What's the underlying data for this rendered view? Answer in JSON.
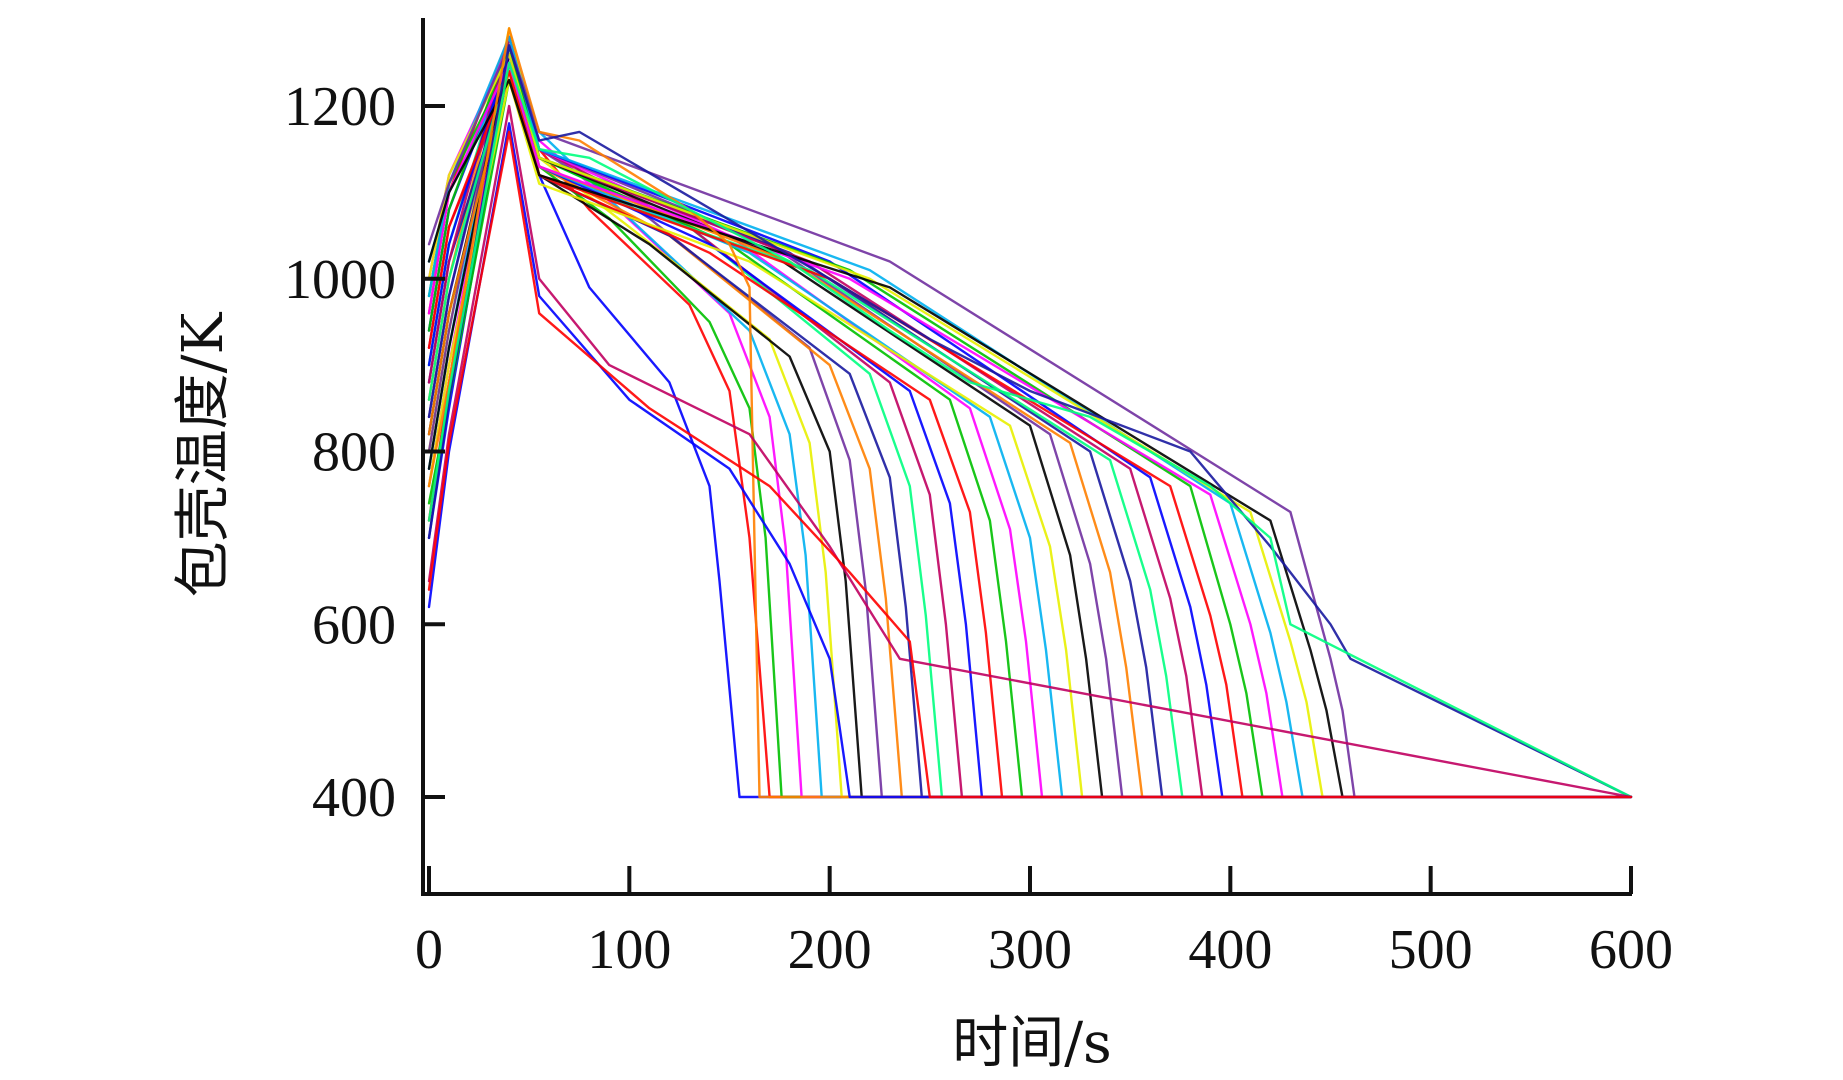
{
  "chart_data": {
    "type": "line",
    "title": "",
    "xlabel": "时间/s",
    "ylabel": "包壳温度/K",
    "xlim": [
      0,
      600
    ],
    "ylim": [
      300,
      1300
    ],
    "x_ticks": [
      0,
      100,
      200,
      300,
      400,
      500,
      600
    ],
    "y_ticks": [
      400,
      600,
      800,
      1000,
      1200
    ],
    "x_tick_labels": [
      "0",
      "100",
      "200",
      "300",
      "400",
      "500",
      "600"
    ],
    "y_tick_labels": [
      "400",
      "600",
      "800",
      "1000",
      "1200"
    ],
    "grid": false,
    "legend": "none",
    "palette": [
      "#0000ff",
      "#ff0000",
      "#00c000",
      "#ff00ff",
      "#00b0f0",
      "#e8f000",
      "#000000",
      "#7030a0",
      "#ff8000",
      "#1a1aa0",
      "#00ff80",
      "#c00060"
    ],
    "series": [
      {
        "x": [
          0,
          10,
          40,
          55,
          80,
          120,
          140,
          145,
          155,
          600
        ],
        "y": [
          700,
          850,
          1250,
          1120,
          990,
          880,
          760,
          650,
          400,
          400
        ]
      },
      {
        "x": [
          0,
          10,
          40,
          55,
          80,
          130,
          150,
          160,
          170,
          600
        ],
        "y": [
          720,
          880,
          1270,
          1150,
          1080,
          970,
          870,
          700,
          400,
          400
        ]
      },
      {
        "x": [
          0,
          10,
          40,
          55,
          90,
          140,
          160,
          168,
          176,
          600
        ],
        "y": [
          740,
          860,
          1230,
          1130,
          1070,
          950,
          850,
          700,
          400,
          400
        ]
      },
      {
        "x": [
          0,
          10,
          40,
          55,
          90,
          150,
          170,
          178,
          186,
          600
        ],
        "y": [
          760,
          900,
          1260,
          1160,
          1090,
          960,
          840,
          690,
          400,
          400
        ]
      },
      {
        "x": [
          0,
          10,
          40,
          55,
          100,
          160,
          180,
          188,
          196,
          600
        ],
        "y": [
          780,
          920,
          1280,
          1170,
          1070,
          940,
          820,
          680,
          400,
          400
        ]
      },
      {
        "x": [
          0,
          10,
          40,
          55,
          100,
          170,
          190,
          198,
          206,
          600
        ],
        "y": [
          800,
          940,
          1290,
          1140,
          1060,
          930,
          810,
          660,
          400,
          400
        ]
      },
      {
        "x": [
          0,
          10,
          40,
          55,
          110,
          180,
          200,
          208,
          216,
          600
        ],
        "y": [
          820,
          960,
          1250,
          1120,
          1040,
          910,
          800,
          650,
          400,
          400
        ]
      },
      {
        "x": [
          0,
          10,
          40,
          55,
          110,
          190,
          210,
          218,
          226,
          600
        ],
        "y": [
          840,
          980,
          1260,
          1150,
          1070,
          920,
          790,
          640,
          400,
          400
        ]
      },
      {
        "x": [
          0,
          10,
          40,
          55,
          120,
          200,
          220,
          228,
          236,
          600
        ],
        "y": [
          860,
          1000,
          1280,
          1130,
          1050,
          900,
          780,
          630,
          400,
          400
        ]
      },
      {
        "x": [
          0,
          10,
          40,
          55,
          120,
          210,
          230,
          238,
          246,
          600
        ],
        "y": [
          880,
          1020,
          1240,
          1120,
          1050,
          890,
          770,
          620,
          400,
          400
        ]
      },
      {
        "x": [
          0,
          10,
          40,
          55,
          130,
          220,
          240,
          248,
          256,
          600
        ],
        "y": [
          900,
          1040,
          1270,
          1140,
          1060,
          890,
          760,
          610,
          400,
          400
        ]
      },
      {
        "x": [
          0,
          10,
          40,
          55,
          130,
          230,
          250,
          258,
          266,
          600
        ],
        "y": [
          920,
          1060,
          1230,
          1150,
          1060,
          880,
          750,
          600,
          400,
          400
        ]
      },
      {
        "x": [
          0,
          10,
          40,
          55,
          140,
          240,
          260,
          268,
          276,
          600
        ],
        "y": [
          940,
          1080,
          1260,
          1130,
          1040,
          870,
          740,
          600,
          400,
          400
        ]
      },
      {
        "x": [
          0,
          10,
          40,
          55,
          140,
          250,
          270,
          278,
          286,
          600
        ],
        "y": [
          960,
          1100,
          1280,
          1120,
          1030,
          860,
          730,
          590,
          400,
          400
        ]
      },
      {
        "x": [
          0,
          10,
          40,
          55,
          150,
          260,
          280,
          288,
          296,
          600
        ],
        "y": [
          980,
          1110,
          1250,
          1140,
          1040,
          860,
          720,
          580,
          400,
          400
        ]
      },
      {
        "x": [
          0,
          10,
          40,
          55,
          150,
          270,
          290,
          298,
          306,
          600
        ],
        "y": [
          1000,
          1120,
          1270,
          1150,
          1050,
          850,
          710,
          580,
          400,
          400
        ]
      },
      {
        "x": [
          0,
          10,
          40,
          55,
          160,
          280,
          300,
          308,
          316,
          600
        ],
        "y": [
          1020,
          1100,
          1240,
          1130,
          1030,
          840,
          700,
          570,
          400,
          400
        ]
      },
      {
        "x": [
          0,
          10,
          40,
          55,
          160,
          290,
          310,
          318,
          326,
          600
        ],
        "y": [
          760,
          900,
          1230,
          1110,
          1020,
          830,
          690,
          570,
          400,
          400
        ]
      },
      {
        "x": [
          0,
          10,
          40,
          55,
          170,
          300,
          320,
          328,
          336,
          600
        ],
        "y": [
          780,
          920,
          1260,
          1140,
          1030,
          830,
          680,
          560,
          400,
          400
        ]
      },
      {
        "x": [
          0,
          10,
          40,
          55,
          170,
          310,
          330,
          338,
          346,
          600
        ],
        "y": [
          800,
          940,
          1280,
          1150,
          1040,
          820,
          670,
          560,
          400,
          400
        ]
      },
      {
        "x": [
          0,
          10,
          40,
          55,
          180,
          320,
          340,
          348,
          356,
          600
        ],
        "y": [
          820,
          960,
          1240,
          1130,
          1020,
          810,
          660,
          550,
          400,
          400
        ]
      },
      {
        "x": [
          0,
          10,
          40,
          55,
          180,
          330,
          350,
          358,
          366,
          600
        ],
        "y": [
          840,
          980,
          1270,
          1140,
          1030,
          800,
          650,
          550,
          400,
          400
        ]
      },
      {
        "x": [
          0,
          10,
          40,
          55,
          190,
          340,
          360,
          368,
          376,
          600
        ],
        "y": [
          860,
          1000,
          1250,
          1120,
          1010,
          790,
          640,
          540,
          400,
          400
        ]
      },
      {
        "x": [
          0,
          10,
          40,
          55,
          190,
          350,
          370,
          378,
          386,
          600
        ],
        "y": [
          880,
          1020,
          1280,
          1140,
          1020,
          780,
          630,
          540,
          400,
          400
        ]
      },
      {
        "x": [
          0,
          10,
          40,
          55,
          200,
          360,
          380,
          388,
          396,
          600
        ],
        "y": [
          900,
          1040,
          1260,
          1150,
          1020,
          770,
          620,
          530,
          400,
          400
        ]
      },
      {
        "x": [
          0,
          10,
          40,
          55,
          200,
          370,
          390,
          398,
          406,
          600
        ],
        "y": [
          920,
          1060,
          1240,
          1120,
          1000,
          760,
          610,
          530,
          400,
          400
        ]
      },
      {
        "x": [
          0,
          10,
          40,
          55,
          210,
          380,
          400,
          408,
          416,
          600
        ],
        "y": [
          940,
          1080,
          1270,
          1140,
          1010,
          760,
          600,
          520,
          400,
          400
        ]
      },
      {
        "x": [
          0,
          10,
          40,
          55,
          210,
          390,
          410,
          418,
          426,
          600
        ],
        "y": [
          960,
          1100,
          1250,
          1130,
          1000,
          750,
          600,
          520,
          400,
          400
        ]
      },
      {
        "x": [
          0,
          10,
          40,
          55,
          220,
          400,
          420,
          428,
          436,
          600
        ],
        "y": [
          980,
          1110,
          1280,
          1150,
          1010,
          740,
          590,
          510,
          400,
          400
        ]
      },
      {
        "x": [
          0,
          10,
          40,
          55,
          220,
          410,
          430,
          438,
          446,
          600
        ],
        "y": [
          1000,
          1120,
          1260,
          1140,
          1000,
          730,
          580,
          510,
          400,
          400
        ]
      },
      {
        "x": [
          0,
          10,
          40,
          55,
          230,
          420,
          440,
          448,
          456,
          600
        ],
        "y": [
          1020,
          1100,
          1230,
          1120,
          990,
          720,
          570,
          500,
          400,
          400
        ]
      },
      {
        "x": [
          0,
          10,
          40,
          55,
          230,
          430,
          450,
          456,
          462,
          600
        ],
        "y": [
          1040,
          1110,
          1270,
          1170,
          1020,
          730,
          560,
          500,
          400,
          400
        ]
      },
      {
        "x": [
          0,
          10,
          40,
          55,
          75,
          130,
          150,
          160,
          165,
          600
        ],
        "y": [
          760,
          880,
          1290,
          1170,
          1160,
          1080,
          1040,
          990,
          400,
          400
        ]
      },
      {
        "x": [
          0,
          10,
          40,
          55,
          75,
          200,
          250,
          300,
          380,
          420,
          450,
          460,
          600
        ],
        "y": [
          700,
          860,
          1270,
          1160,
          1170,
          1000,
          930,
          870,
          800,
          690,
          600,
          560,
          400
        ]
      },
      {
        "x": [
          0,
          10,
          40,
          55,
          80,
          180,
          230,
          270,
          330,
          390,
          420,
          430,
          600
        ],
        "y": [
          720,
          870,
          1250,
          1150,
          1140,
          1020,
          940,
          880,
          840,
          760,
          700,
          600,
          400
        ]
      },
      {
        "x": [
          0,
          10,
          40,
          55,
          90,
          160,
          200,
          235,
          600
        ],
        "y": [
          650,
          820,
          1200,
          1000,
          900,
          820,
          690,
          560,
          400
        ]
      },
      {
        "x": [
          0,
          10,
          40,
          55,
          100,
          150,
          180,
          200,
          210,
          600
        ],
        "y": [
          620,
          800,
          1180,
          980,
          860,
          780,
          670,
          560,
          400,
          400
        ]
      },
      {
        "x": [
          0,
          10,
          40,
          55,
          110,
          170,
          210,
          240,
          250,
          600
        ],
        "y": [
          640,
          810,
          1170,
          960,
          850,
          760,
          660,
          580,
          400,
          400
        ]
      }
    ]
  }
}
